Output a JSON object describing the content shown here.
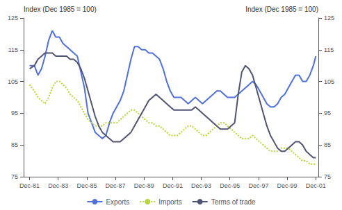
{
  "chart_data": {
    "type": "line",
    "ylabel": "Index (Dec 1985 = 100)",
    "y2label": "Index (Dec 1985 = 100)",
    "x": [
      1981.92,
      1982.25,
      1982.5,
      1982.75,
      1983.0,
      1983.25,
      1983.5,
      1983.75,
      1984.0,
      1984.25,
      1984.5,
      1984.75,
      1985.0,
      1985.25,
      1985.5,
      1985.75,
      1986.0,
      1986.25,
      1986.5,
      1986.75,
      1987.0,
      1987.25,
      1987.5,
      1987.75,
      1988.0,
      1988.25,
      1988.5,
      1988.75,
      1989.0,
      1989.25,
      1989.5,
      1989.75,
      1990.0,
      1990.25,
      1990.5,
      1990.75,
      1991.0,
      1991.25,
      1991.5,
      1991.75,
      1992.0,
      1992.25,
      1992.5,
      1992.75,
      1993.0,
      1993.25,
      1993.5,
      1993.75,
      1994.0,
      1994.25,
      1994.5,
      1994.75,
      1995.0,
      1995.25,
      1995.5,
      1995.75,
      1996.0,
      1996.25,
      1996.5,
      1996.75,
      1997.0,
      1997.25,
      1997.5,
      1997.75,
      1998.0,
      1998.25,
      1998.5,
      1998.75,
      1999.0,
      1999.25,
      1999.5,
      1999.75,
      2000.0,
      2000.25,
      2000.5,
      2000.75,
      2001.0,
      2001.25,
      2001.5,
      2001.75,
      2001.92
    ],
    "series": [
      {
        "name": "Exports",
        "line_style": "solid",
        "values": [
          110,
          110,
          107,
          109,
          113,
          118,
          121,
          119,
          119,
          117,
          116,
          115,
          114,
          113,
          108,
          103,
          95,
          92,
          89,
          88,
          87,
          88,
          92,
          95,
          97,
          99,
          102,
          107,
          112,
          116,
          116,
          115,
          115,
          114,
          114,
          113,
          112,
          109,
          105,
          102,
          100,
          100,
          100,
          99,
          98,
          99,
          100,
          99,
          98,
          99,
          100,
          101,
          102,
          102,
          101,
          100,
          100,
          100,
          101,
          102,
          103,
          104,
          105,
          104,
          102,
          100,
          98,
          97,
          97,
          98,
          100,
          101,
          103,
          105,
          107,
          107,
          105,
          105,
          107,
          110,
          113
        ]
      },
      {
        "name": "Imports",
        "line_style": "dotted",
        "values": [
          104,
          102,
          100,
          99,
          98,
          100,
          103,
          105,
          105,
          104,
          103,
          101,
          100,
          99,
          97,
          95,
          93,
          92,
          91,
          91,
          91,
          92,
          92,
          92,
          92,
          93,
          94,
          95,
          96,
          96,
          95,
          94,
          93,
          92,
          92,
          91,
          91,
          90,
          89,
          88,
          88,
          88,
          89,
          90,
          91,
          91,
          90,
          89,
          88,
          88,
          89,
          90,
          91,
          92,
          92,
          91,
          90,
          89,
          88,
          87,
          87,
          87,
          88,
          87,
          86,
          85,
          84,
          83,
          83,
          83,
          84,
          84,
          84,
          83,
          82,
          81,
          80,
          80,
          79,
          79,
          79
        ]
      },
      {
        "name": "Terms of trade",
        "line_style": "solid",
        "values": [
          109,
          110,
          112,
          113,
          114,
          114,
          114,
          113,
          113,
          113,
          113,
          112,
          112,
          111,
          109,
          106,
          102,
          98,
          94,
          91,
          89,
          88,
          87,
          86,
          86,
          86,
          87,
          88,
          89,
          91,
          93,
          95,
          97,
          99,
          100,
          101,
          100,
          99,
          98,
          97,
          96,
          96,
          96,
          96,
          96,
          96,
          97,
          96,
          95,
          94,
          93,
          92,
          91,
          90,
          90,
          90,
          91,
          92,
          101,
          108,
          110,
          109,
          107,
          103,
          99,
          95,
          91,
          88,
          86,
          84,
          83,
          83,
          84,
          85,
          86,
          86,
          85,
          83,
          82,
          81,
          81
        ]
      }
    ],
    "xlim": [
      1981.5,
      2002.1
    ],
    "xticks": [
      {
        "value": 1981.917,
        "label": "Dec-81"
      },
      {
        "value": 1983.917,
        "label": "Dec-83"
      },
      {
        "value": 1985.917,
        "label": "Dec-85"
      },
      {
        "value": 1987.917,
        "label": "Dec-87"
      },
      {
        "value": 1989.917,
        "label": "Dec-89"
      },
      {
        "value": 1991.917,
        "label": "Dec-91"
      },
      {
        "value": 1993.917,
        "label": "Dec-93"
      },
      {
        "value": 1995.917,
        "label": "Dec-95"
      },
      {
        "value": 1997.917,
        "label": "Dec-97"
      },
      {
        "value": 1999.917,
        "label": "Dec-99"
      },
      {
        "value": 2001.917,
        "label": "Dec-01"
      }
    ],
    "ylim": [
      75,
      125
    ],
    "yticks": [
      75,
      85,
      95,
      105,
      115,
      125
    ],
    "y2lim": [
      75,
      125
    ],
    "y2ticks": [
      75,
      85,
      95,
      105,
      115,
      125
    ],
    "grid": false,
    "legend": "bottom"
  }
}
